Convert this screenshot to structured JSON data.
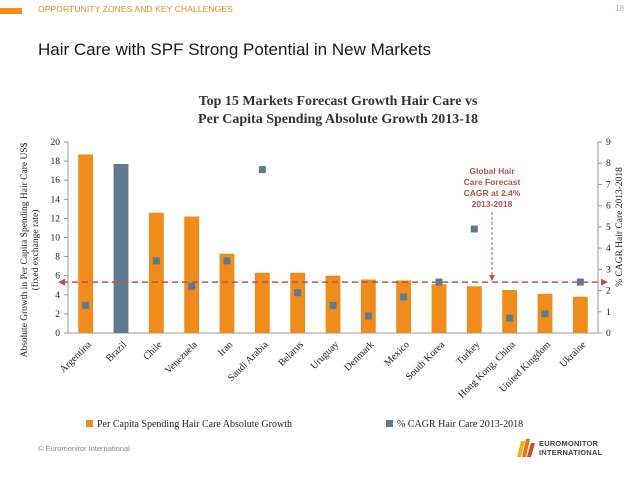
{
  "header": {
    "section": "OPPORTUNITY ZONES AND KEY CHALLENGES",
    "page_number": "18",
    "title": "Hair Care with SPF Strong Potential in New Markets"
  },
  "footer": {
    "copyright": "© Euromonitor International",
    "logo_line1": "EUROMONITOR",
    "logo_line2": "INTERNATIONAL"
  },
  "colors": {
    "accent": "#f08c1c",
    "bar": "#f08c1c",
    "marker": "#5e7a91",
    "highlight_bar": "#5e7a91",
    "reference_line": "#c0504d"
  },
  "chart_data": {
    "type": "bar",
    "title_line1": "Top 15 Markets Forecast Growth Hair Care vs",
    "title_line2": "Per Capita Spending Absolute Growth 2013-18",
    "ylabel_line1": "Absolute Growth in Per Capita Spending Hair Care US$",
    "ylabel_line2": "(fixed exchange rate)",
    "y2label": "% CAGR Hair Care 2013-2018",
    "ylim": [
      0,
      20
    ],
    "yticks": [
      0,
      2,
      4,
      6,
      8,
      10,
      12,
      14,
      16,
      18,
      20
    ],
    "y2lim": [
      0,
      9
    ],
    "y2ticks": [
      0,
      1,
      2,
      3,
      4,
      5,
      6,
      7,
      8,
      9
    ],
    "categories": [
      "Argentina",
      "Brazil",
      "Chile",
      "Venezuela",
      "Iran",
      "Saudi Arabia",
      "Belarus",
      "Uruguay",
      "Denmark",
      "Mexico",
      "South Korea",
      "Turkey",
      "Hong Kong, China",
      "United Kingdom",
      "Ukraine"
    ],
    "series": [
      {
        "name": "Per Capita Spending Hair Care Absolute Growth",
        "axis": "left",
        "values": [
          18.7,
          17.7,
          12.6,
          12.2,
          8.3,
          6.3,
          6.3,
          6.0,
          5.6,
          5.5,
          5.1,
          4.9,
          4.5,
          4.1,
          3.8
        ]
      },
      {
        "name": "% CAGR Hair Care 2013-2018",
        "axis": "right",
        "values": [
          1.3,
          null,
          3.4,
          2.2,
          3.4,
          7.7,
          1.9,
          1.3,
          0.8,
          1.7,
          2.4,
          4.9,
          0.7,
          0.9,
          2.4
        ]
      }
    ],
    "highlight_category": "Brazil",
    "reference_line": {
      "axis": "right",
      "value": 2.4
    },
    "annotation": {
      "line1": "Global Hair",
      "line2": "Care Forecast",
      "line3": "CAGR at 2.4%",
      "line4": "2013-2018"
    },
    "grid": false,
    "legend_position": "bottom"
  }
}
